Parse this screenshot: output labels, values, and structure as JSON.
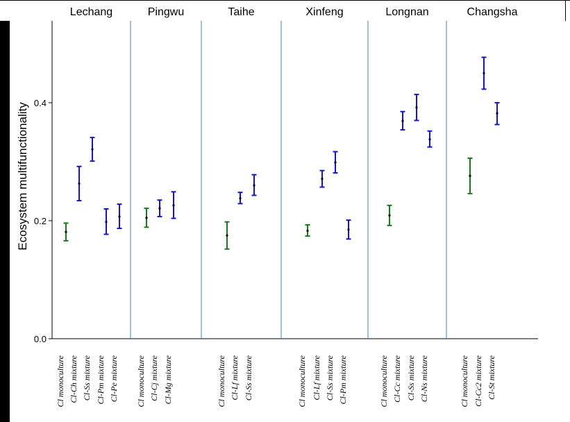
{
  "chart_data": {
    "type": "errorbar",
    "ylabel": "Ecosystem multifunctionality",
    "xlabel": "",
    "ylim": [
      0.0,
      0.54
    ],
    "yticks": [
      "0.0",
      "0.2",
      "0.4"
    ],
    "grid": false,
    "colors": {
      "monoculture": "#1a7a1a",
      "mixture": "#1515c8",
      "separator": "#4a7fb0",
      "point": "#000000"
    },
    "panels": [
      {
        "site": "Lechang",
        "points": [
          {
            "label": "Cl monoculture",
            "group": "monoculture",
            "mean": 0.181,
            "lower": 0.166,
            "upper": 0.196
          },
          {
            "label": "Cl-Ch mixture",
            "group": "mixture",
            "mean": 0.263,
            "lower": 0.234,
            "upper": 0.292
          },
          {
            "label": "Cl-Ss mixture",
            "group": "mixture",
            "mean": 0.321,
            "lower": 0.301,
            "upper": 0.341
          },
          {
            "label": "Cl-Pm mixture",
            "group": "mixture",
            "mean": 0.198,
            "lower": 0.177,
            "upper": 0.22
          },
          {
            "label": "Cl-Pe mixture",
            "group": "mixture",
            "mean": 0.207,
            "lower": 0.187,
            "upper": 0.228
          }
        ]
      },
      {
        "site": "Pingwu",
        "points": [
          {
            "label": "Cl monoculture",
            "group": "monoculture",
            "mean": 0.205,
            "lower": 0.189,
            "upper": 0.221
          },
          {
            "label": "Cl-Cj mixture",
            "group": "mixture",
            "mean": 0.221,
            "lower": 0.207,
            "upper": 0.235
          },
          {
            "label": "Cl-Mg mixture",
            "group": "mixture",
            "mean": 0.226,
            "lower": 0.204,
            "upper": 0.249
          }
        ]
      },
      {
        "site": "Taihe",
        "points": [
          {
            "label": "Cl monoculture",
            "group": "monoculture",
            "mean": 0.175,
            "lower": 0.152,
            "upper": 0.198
          },
          {
            "label": "Cl-Lf mixture",
            "group": "mixture",
            "mean": 0.238,
            "lower": 0.229,
            "upper": 0.248
          },
          {
            "label": "Cl-Ss mixture",
            "group": "mixture",
            "mean": 0.26,
            "lower": 0.243,
            "upper": 0.278
          }
        ]
      },
      {
        "site": "Xinfeng",
        "points": [
          {
            "label": "Cl monoculture",
            "group": "monoculture",
            "mean": 0.183,
            "lower": 0.174,
            "upper": 0.193
          },
          {
            "label": "Cl-Lf mixture",
            "group": "mixture",
            "mean": 0.271,
            "lower": 0.257,
            "upper": 0.285
          },
          {
            "label": "Cl-Ss mixture",
            "group": "mixture",
            "mean": 0.299,
            "lower": 0.281,
            "upper": 0.317
          },
          {
            "label": "Cl-Pm mixture",
            "group": "mixture",
            "mean": 0.185,
            "lower": 0.169,
            "upper": 0.201
          }
        ]
      },
      {
        "site": "Longnan",
        "points": [
          {
            "label": "Cl  monoculture",
            "group": "monoculture",
            "mean": 0.209,
            "lower": 0.192,
            "upper": 0.226
          },
          {
            "label": "Cl-Cc mixture",
            "group": "mixture",
            "mean": 0.369,
            "lower": 0.354,
            "upper": 0.385
          },
          {
            "label": "Cl-Ss mixture",
            "group": "mixture",
            "mean": 0.392,
            "lower": 0.37,
            "upper": 0.414
          },
          {
            "label": "Cl-Ns mixture",
            "group": "mixture",
            "mean": 0.338,
            "lower": 0.325,
            "upper": 0.352
          }
        ]
      },
      {
        "site": "Changsha",
        "points": [
          {
            "label": "Cl monoculture",
            "group": "monoculture",
            "mean": 0.276,
            "lower": 0.246,
            "upper": 0.306
          },
          {
            "label": "Cl-Cc2 mixture",
            "group": "mixture",
            "mean": 0.45,
            "lower": 0.423,
            "upper": 0.477
          },
          {
            "label": "Cl-St mixture",
            "group": "mixture",
            "mean": 0.382,
            "lower": 0.363,
            "upper": 0.4
          }
        ]
      }
    ]
  }
}
